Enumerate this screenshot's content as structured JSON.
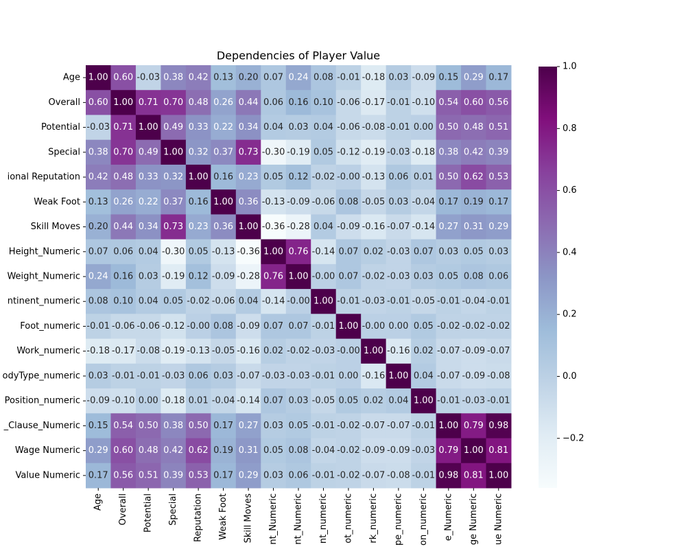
{
  "chart_data": {
    "type": "heatmap",
    "title": "Dependencies of Player Value",
    "x_categories": [
      "Age",
      "Overall",
      "Potential",
      "Special",
      "Reputation",
      "Weak Foot",
      "Skill Moves",
      "nt_Numeric",
      "nt_Numeric",
      "nt_numeric",
      "ot_numeric",
      "rk_numeric",
      "pe_numeric",
      "on_numeric",
      "e_Numeric",
      "ge Numeric",
      "ue Numeric"
    ],
    "y_categories": [
      "Age",
      "Overall",
      "Potential",
      "Special",
      "ional Reputation",
      "Weak Foot",
      "Skill Moves",
      "Height_Numeric",
      "Weight_Numeric",
      "ntinent_numeric",
      "Foot_numeric",
      "Work_numeric",
      "odyType_numeric",
      "Position_numeric",
      "_Clause_Numeric",
      "Wage Numeric",
      "Value Numeric"
    ],
    "values": [
      [
        1,
        0.6,
        -0.03,
        0.38,
        0.42,
        0.13,
        0.2,
        0.07,
        0.24,
        0.08,
        -0.01,
        -0.18,
        0.03,
        -0.09,
        0.15,
        0.29,
        0.17
      ],
      [
        0.6,
        1,
        0.71,
        0.7,
        0.48,
        0.26,
        0.44,
        0.06,
        0.16,
        0.1,
        -0.06,
        -0.17,
        -0.01,
        -0.1,
        0.54,
        0.6,
        0.56
      ],
      [
        -0.03,
        0.71,
        1,
        0.49,
        0.33,
        0.22,
        0.34,
        0.04,
        0.03,
        0.04,
        -0.06,
        -0.08,
        -0.01,
        0,
        0.5,
        0.48,
        0.51
      ],
      [
        0.38,
        0.7,
        0.49,
        1,
        0.32,
        0.37,
        0.73,
        -0.3,
        -0.19,
        0.05,
        -0.12,
        -0.19,
        -0.03,
        -0.18,
        0.38,
        0.42,
        0.39
      ],
      [
        0.42,
        0.48,
        0.33,
        0.32,
        1,
        0.16,
        0.23,
        0.05,
        0.12,
        -0.02,
        0,
        -0.13,
        0.06,
        0.01,
        0.5,
        0.62,
        0.53
      ],
      [
        0.13,
        0.26,
        0.22,
        0.37,
        0.16,
        1,
        0.36,
        -0.13,
        -0.09,
        -0.06,
        0.08,
        -0.05,
        0.03,
        -0.04,
        0.17,
        0.19,
        0.17
      ],
      [
        0.2,
        0.44,
        0.34,
        0.73,
        0.23,
        0.36,
        1,
        -0.36,
        -0.28,
        0.04,
        -0.09,
        -0.16,
        -0.07,
        -0.14,
        0.27,
        0.31,
        0.29
      ],
      [
        0.07,
        0.06,
        0.04,
        -0.3,
        0.05,
        -0.13,
        -0.36,
        1,
        0.76,
        -0.14,
        0.07,
        0.02,
        -0.03,
        0.07,
        0.03,
        0.05,
        0.03
      ],
      [
        0.24,
        0.16,
        0.03,
        -0.19,
        0.12,
        -0.09,
        -0.28,
        0.76,
        1,
        0,
        0.07,
        -0.02,
        -0.03,
        0.03,
        0.05,
        0.08,
        0.06
      ],
      [
        0.08,
        0.1,
        0.04,
        0.05,
        -0.02,
        -0.06,
        0.04,
        -0.14,
        0,
        1,
        -0.01,
        -0.03,
        -0.01,
        -0.05,
        -0.01,
        -0.04,
        -0.01
      ],
      [
        -0.01,
        -0.06,
        -0.06,
        -0.12,
        0,
        0.08,
        -0.09,
        0.07,
        0.07,
        -0.01,
        1,
        0,
        0,
        0.05,
        -0.02,
        -0.02,
        -0.02
      ],
      [
        -0.18,
        -0.17,
        -0.08,
        -0.19,
        -0.13,
        -0.05,
        -0.16,
        0.02,
        -0.02,
        -0.03,
        0,
        1,
        -0.16,
        0.02,
        -0.07,
        -0.09,
        -0.07
      ],
      [
        0.03,
        -0.01,
        -0.01,
        -0.03,
        0.06,
        0.03,
        -0.07,
        -0.03,
        -0.03,
        -0.01,
        0,
        -0.16,
        1,
        0.04,
        -0.07,
        -0.09,
        -0.08
      ],
      [
        -0.09,
        -0.1,
        0,
        -0.18,
        0.01,
        -0.04,
        -0.14,
        0.07,
        0.03,
        -0.05,
        0.05,
        0.02,
        0.04,
        1,
        -0.01,
        -0.03,
        -0.01
      ],
      [
        0.15,
        0.54,
        0.5,
        0.38,
        0.5,
        0.17,
        0.27,
        0.03,
        0.05,
        -0.01,
        -0.02,
        -0.07,
        -0.07,
        -0.01,
        1,
        0.79,
        0.98
      ],
      [
        0.29,
        0.6,
        0.48,
        0.42,
        0.62,
        0.19,
        0.31,
        0.05,
        0.08,
        -0.04,
        -0.02,
        -0.09,
        -0.09,
        -0.03,
        0.79,
        1,
        0.81
      ],
      [
        0.17,
        0.56,
        0.51,
        0.39,
        0.53,
        0.17,
        0.29,
        0.03,
        0.06,
        -0.01,
        -0.02,
        -0.07,
        -0.08,
        -0.01,
        0.98,
        0.81,
        1
      ]
    ],
    "value_labels": [
      [
        "1.00",
        "0.60",
        "-0.03",
        "0.38",
        "0.42",
        "0.13",
        "0.20",
        "0.07",
        "0.24",
        "0.08",
        "-0.01",
        "-0.18",
        "0.03",
        "-0.09",
        "0.15",
        "0.29",
        "0.17"
      ],
      [
        "0.60",
        "1.00",
        "0.71",
        "0.70",
        "0.48",
        "0.26",
        "0.44",
        "0.06",
        "0.16",
        "0.10",
        "-0.06",
        "-0.17",
        "-0.01",
        "-0.10",
        "0.54",
        "0.60",
        "0.56"
      ],
      [
        "-0.03",
        "0.71",
        "1.00",
        "0.49",
        "0.33",
        "0.22",
        "0.34",
        "0.04",
        "0.03",
        "0.04",
        "-0.06",
        "-0.08",
        "-0.01",
        "0.00",
        "0.50",
        "0.48",
        "0.51"
      ],
      [
        "0.38",
        "0.70",
        "0.49",
        "1.00",
        "0.32",
        "0.37",
        "0.73",
        "-0.30",
        "-0.19",
        "0.05",
        "-0.12",
        "-0.19",
        "-0.03",
        "-0.18",
        "0.38",
        "0.42",
        "0.39"
      ],
      [
        "0.42",
        "0.48",
        "0.33",
        "0.32",
        "1.00",
        "0.16",
        "0.23",
        "0.05",
        "0.12",
        "-0.02",
        "-0.00",
        "-0.13",
        "0.06",
        "0.01",
        "0.50",
        "0.62",
        "0.53"
      ],
      [
        "0.13",
        "0.26",
        "0.22",
        "0.37",
        "0.16",
        "1.00",
        "0.36",
        "-0.13",
        "-0.09",
        "-0.06",
        "0.08",
        "-0.05",
        "0.03",
        "-0.04",
        "0.17",
        "0.19",
        "0.17"
      ],
      [
        "0.20",
        "0.44",
        "0.34",
        "0.73",
        "0.23",
        "0.36",
        "1.00",
        "-0.36",
        "-0.28",
        "0.04",
        "-0.09",
        "-0.16",
        "-0.07",
        "-0.14",
        "0.27",
        "0.31",
        "0.29"
      ],
      [
        "0.07",
        "0.06",
        "0.04",
        "-0.30",
        "0.05",
        "-0.13",
        "-0.36",
        "1.00",
        "0.76",
        "-0.14",
        "0.07",
        "0.02",
        "-0.03",
        "0.07",
        "0.03",
        "0.05",
        "0.03"
      ],
      [
        "0.24",
        "0.16",
        "0.03",
        "-0.19",
        "0.12",
        "-0.09",
        "-0.28",
        "0.76",
        "1.00",
        "-0.00",
        "0.07",
        "-0.02",
        "-0.03",
        "0.03",
        "0.05",
        "0.08",
        "0.06"
      ],
      [
        "0.08",
        "0.10",
        "0.04",
        "0.05",
        "-0.02",
        "-0.06",
        "0.04",
        "-0.14",
        "-0.00",
        "1.00",
        "-0.01",
        "-0.03",
        "-0.01",
        "-0.05",
        "-0.01",
        "-0.04",
        "-0.01"
      ],
      [
        "-0.01",
        "-0.06",
        "-0.06",
        "-0.12",
        "-0.00",
        "0.08",
        "-0.09",
        "0.07",
        "0.07",
        "-0.01",
        "1.00",
        "-0.00",
        "0.00",
        "0.05",
        "-0.02",
        "-0.02",
        "-0.02"
      ],
      [
        "-0.18",
        "-0.17",
        "-0.08",
        "-0.19",
        "-0.13",
        "-0.05",
        "-0.16",
        "0.02",
        "-0.02",
        "-0.03",
        "-0.00",
        "1.00",
        "-0.16",
        "0.02",
        "-0.07",
        "-0.09",
        "-0.07"
      ],
      [
        "0.03",
        "-0.01",
        "-0.01",
        "-0.03",
        "0.06",
        "0.03",
        "-0.07",
        "-0.03",
        "-0.03",
        "-0.01",
        "0.00",
        "-0.16",
        "1.00",
        "0.04",
        "-0.07",
        "-0.09",
        "-0.08"
      ],
      [
        "-0.09",
        "-0.10",
        "0.00",
        "-0.18",
        "0.01",
        "-0.04",
        "-0.14",
        "0.07",
        "0.03",
        "-0.05",
        "0.05",
        "0.02",
        "0.04",
        "1.00",
        "-0.01",
        "-0.03",
        "-0.01"
      ],
      [
        "0.15",
        "0.54",
        "0.50",
        "0.38",
        "0.50",
        "0.17",
        "0.27",
        "0.03",
        "0.05",
        "-0.01",
        "-0.02",
        "-0.07",
        "-0.07",
        "-0.01",
        "1.00",
        "0.79",
        "0.98"
      ],
      [
        "0.29",
        "0.60",
        "0.48",
        "0.42",
        "0.62",
        "0.19",
        "0.31",
        "0.05",
        "0.08",
        "-0.04",
        "-0.02",
        "-0.09",
        "-0.09",
        "-0.03",
        "0.79",
        "1.00",
        "0.81"
      ],
      [
        "0.17",
        "0.56",
        "0.51",
        "0.39",
        "0.53",
        "0.17",
        "0.29",
        "0.03",
        "0.06",
        "-0.01",
        "-0.02",
        "-0.07",
        "-0.08",
        "-0.01",
        "0.98",
        "0.81",
        "1.00"
      ]
    ],
    "vlim": [
      -0.36,
      1
    ],
    "colorbar_ticks": [
      {
        "value": -0.2,
        "label": "−0.2"
      },
      {
        "value": 0,
        "label": "0.0"
      },
      {
        "value": 0.2,
        "label": "0.2"
      },
      {
        "value": 0.4,
        "label": "0.4"
      },
      {
        "value": 0.6,
        "label": "0.6"
      },
      {
        "value": 0.8,
        "label": "0.8"
      },
      {
        "value": 1,
        "label": "1.0"
      }
    ],
    "colormap": [
      "#f7fcfd",
      "#e0ecf4",
      "#bfd3e6",
      "#9ebcda",
      "#8c96c6",
      "#8c6bb1",
      "#88419d",
      "#810f7c",
      "#4d004b"
    ]
  }
}
